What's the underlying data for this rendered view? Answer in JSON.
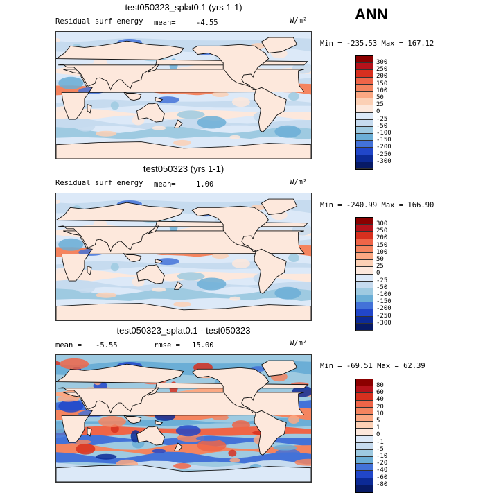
{
  "header": {
    "season": "ANN"
  },
  "panels": [
    {
      "id": "p1",
      "title": "test050323_splat0.1 (yrs 1-1)",
      "left_label": "Residual surf energy",
      "stat_label": "mean=",
      "stat_value": "-4.55",
      "unit": "W/m²",
      "minmax": "Min = -235.53 Max = 167.12",
      "levels": [
        "300",
        "250",
        "200",
        "150",
        "100",
        "50",
        "25",
        "0",
        "-25",
        "-50",
        "-100",
        "-150",
        "-200",
        "-250",
        "-300"
      ],
      "colors": [
        "#8b0000",
        "#b5121b",
        "#d7301f",
        "#ef6548",
        "#f4845f",
        "#fba883",
        "#fcd0b5",
        "#fde8dc",
        "#dce9f8",
        "#c6dbef",
        "#9ecae1",
        "#6baed6",
        "#4372d8",
        "#2146c9",
        "#0c2a96",
        "#071a66"
      ]
    },
    {
      "id": "p2",
      "title": "test050323 (yrs 1-1)",
      "left_label": "Residual surf energy",
      "stat_label": "mean=",
      "stat_value": "1.00",
      "unit": "W/m²",
      "minmax": "Min = -240.99 Max = 166.90",
      "levels": [
        "300",
        "250",
        "200",
        "150",
        "100",
        "50",
        "25",
        "0",
        "-25",
        "-50",
        "-100",
        "-150",
        "-200",
        "-250",
        "-300"
      ],
      "colors": [
        "#8b0000",
        "#b5121b",
        "#d7301f",
        "#ef6548",
        "#f4845f",
        "#fba883",
        "#fcd0b5",
        "#fde8dc",
        "#dce9f8",
        "#c6dbef",
        "#9ecae1",
        "#6baed6",
        "#4372d8",
        "#2146c9",
        "#0c2a96",
        "#071a66"
      ]
    },
    {
      "id": "p3",
      "title": "test050323_splat0.1 - test050323",
      "left_label": "mean =",
      "left_value": "-5.55",
      "stat_label": "rmse =",
      "stat_value": "15.00",
      "unit": "W/m²",
      "minmax": "Min = -69.51 Max = 62.39",
      "levels": [
        "80",
        "60",
        "40",
        "20",
        "10",
        "5",
        "1",
        "0",
        "-1",
        "-5",
        "-10",
        "-20",
        "-40",
        "-60",
        "-80"
      ],
      "colors": [
        "#8b0000",
        "#b5121b",
        "#d7301f",
        "#ef6548",
        "#f4845f",
        "#fba883",
        "#fcd0b5",
        "#fde8dc",
        "#dce9f8",
        "#c6dbef",
        "#9ecae1",
        "#6baed6",
        "#4372d8",
        "#2146c9",
        "#0c2a96",
        "#071a66"
      ]
    }
  ],
  "chart_data": [
    {
      "type": "heatmap",
      "title": "test050323_splat0.1 (yrs 1-1)",
      "variable": "Residual surf energy",
      "units": "W/m²",
      "mean": -4.55,
      "min": -235.53,
      "max": 167.12,
      "contour_levels": [
        -300,
        -250,
        -200,
        -150,
        -100,
        -50,
        -25,
        0,
        25,
        50,
        100,
        150,
        200,
        250,
        300
      ],
      "season": "ANN"
    },
    {
      "type": "heatmap",
      "title": "test050323 (yrs 1-1)",
      "variable": "Residual surf energy",
      "units": "W/m²",
      "mean": 1.0,
      "min": -240.99,
      "max": 166.9,
      "contour_levels": [
        -300,
        -250,
        -200,
        -150,
        -100,
        -50,
        -25,
        0,
        25,
        50,
        100,
        150,
        200,
        250,
        300
      ],
      "season": "ANN"
    },
    {
      "type": "heatmap",
      "title": "test050323_splat0.1 - test050323",
      "units": "W/m²",
      "mean": -5.55,
      "rmse": 15.0,
      "min": -69.51,
      "max": 62.39,
      "contour_levels": [
        -80,
        -60,
        -40,
        -20,
        -10,
        -5,
        -1,
        0,
        1,
        5,
        10,
        20,
        40,
        60,
        80
      ],
      "season": "ANN"
    }
  ]
}
